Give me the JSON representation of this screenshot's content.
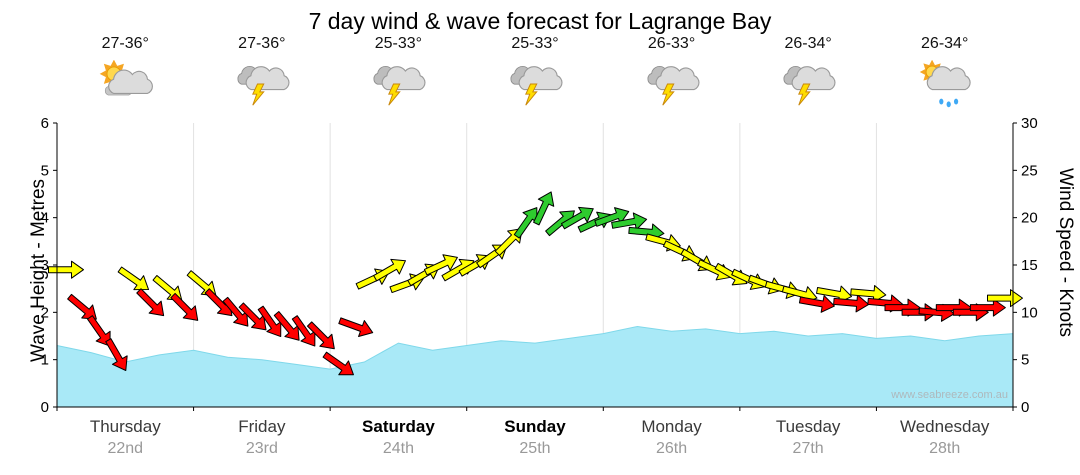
{
  "title": "7 day wind & wave forecast for Lagrange Bay",
  "watermark": "www.seabreeze.com.au",
  "left_axis": {
    "label": "Wave Height - Metres",
    "min": 0,
    "max": 6,
    "ticks": [
      0,
      1,
      2,
      3,
      4,
      5,
      6
    ]
  },
  "right_axis": {
    "label": "Wind Speed - Knots",
    "min": 0,
    "max": 30,
    "ticks": [
      0,
      5,
      10,
      15,
      20,
      25,
      30
    ]
  },
  "days": [
    {
      "name": "Thursday",
      "date": "22nd",
      "temp": "27-36°",
      "icon": "partly-cloudy",
      "weekend": false
    },
    {
      "name": "Friday",
      "date": "23rd",
      "temp": "27-36°",
      "icon": "thunderstorm",
      "weekend": false
    },
    {
      "name": "Saturday",
      "date": "24th",
      "temp": "25-33°",
      "icon": "thunderstorm",
      "weekend": true
    },
    {
      "name": "Sunday",
      "date": "25th",
      "temp": "25-33°",
      "icon": "thunderstorm",
      "weekend": true
    },
    {
      "name": "Monday",
      "date": "26th",
      "temp": "26-33°",
      "icon": "thunderstorm",
      "weekend": false
    },
    {
      "name": "Tuesday",
      "date": "27th",
      "temp": "26-34°",
      "icon": "thunderstorm",
      "weekend": false
    },
    {
      "name": "Wednesday",
      "date": "28th",
      "temp": "26-34°",
      "icon": "sun-showers",
      "weekend": false
    }
  ],
  "colors": {
    "wave_fill": "#A9E9F7",
    "wave_stroke": "#7FD8EA",
    "wind_red": "#FF0000",
    "wind_yellow": "#FFFF00",
    "wind_green": "#2ECC2E",
    "grid": "#E2E2E2",
    "axis": "#000000"
  },
  "chart_data": [
    {
      "type": "area",
      "name": "Wave height",
      "axis": "left",
      "unit": "metres",
      "x_start_day": 0,
      "x_end_day": 7,
      "points_per_day": 4,
      "ylim": [
        0,
        6
      ],
      "values_m": [
        1.3,
        1.15,
        0.95,
        1.1,
        1.2,
        1.05,
        1.0,
        0.9,
        0.8,
        0.95,
        1.35,
        1.2,
        1.3,
        1.4,
        1.35,
        1.45,
        1.55,
        1.7,
        1.6,
        1.65,
        1.55,
        1.6,
        1.5,
        1.55,
        1.45,
        1.5,
        1.4,
        1.5,
        1.55
      ]
    },
    {
      "type": "scatter",
      "name": "Wind speed & direction",
      "marker": "arrow",
      "axis": "right",
      "unit": "knots",
      "points_per_day": 8,
      "ylim": [
        0,
        30
      ],
      "speeds_knots": [
        14.5,
        10.5,
        8,
        5.5,
        13.5,
        11,
        12.5,
        10.5,
        13,
        11,
        10,
        9.5,
        9,
        8.5,
        8,
        7.5,
        4.5,
        8.5,
        13.5,
        14.5,
        13,
        14,
        15,
        14.5,
        15,
        16,
        17.5,
        19.5,
        21,
        19.5,
        20,
        19.5,
        20,
        19.5,
        18.5,
        17.5,
        16.5,
        15.5,
        14.5,
        14,
        13.5,
        13,
        12.5,
        12,
        11,
        12,
        11,
        12,
        11,
        10.5,
        10,
        10,
        10.5,
        10,
        10.5,
        11.5
      ],
      "directions_deg_clockwise_from_east": [
        0,
        40,
        55,
        60,
        35,
        45,
        40,
        45,
        40,
        45,
        50,
        45,
        55,
        50,
        55,
        45,
        35,
        20,
        -25,
        -30,
        -20,
        -30,
        -25,
        -30,
        -30,
        -35,
        -45,
        -55,
        -65,
        -40,
        -30,
        -25,
        -20,
        -10,
        5,
        15,
        25,
        30,
        25,
        30,
        25,
        20,
        15,
        15,
        10,
        10,
        5,
        5,
        5,
        0,
        0,
        5,
        0,
        0,
        0,
        0
      ],
      "speed_colors": {
        "red_max": 11.4,
        "yellow_max": 17.9,
        "green_min": 18
      }
    }
  ]
}
